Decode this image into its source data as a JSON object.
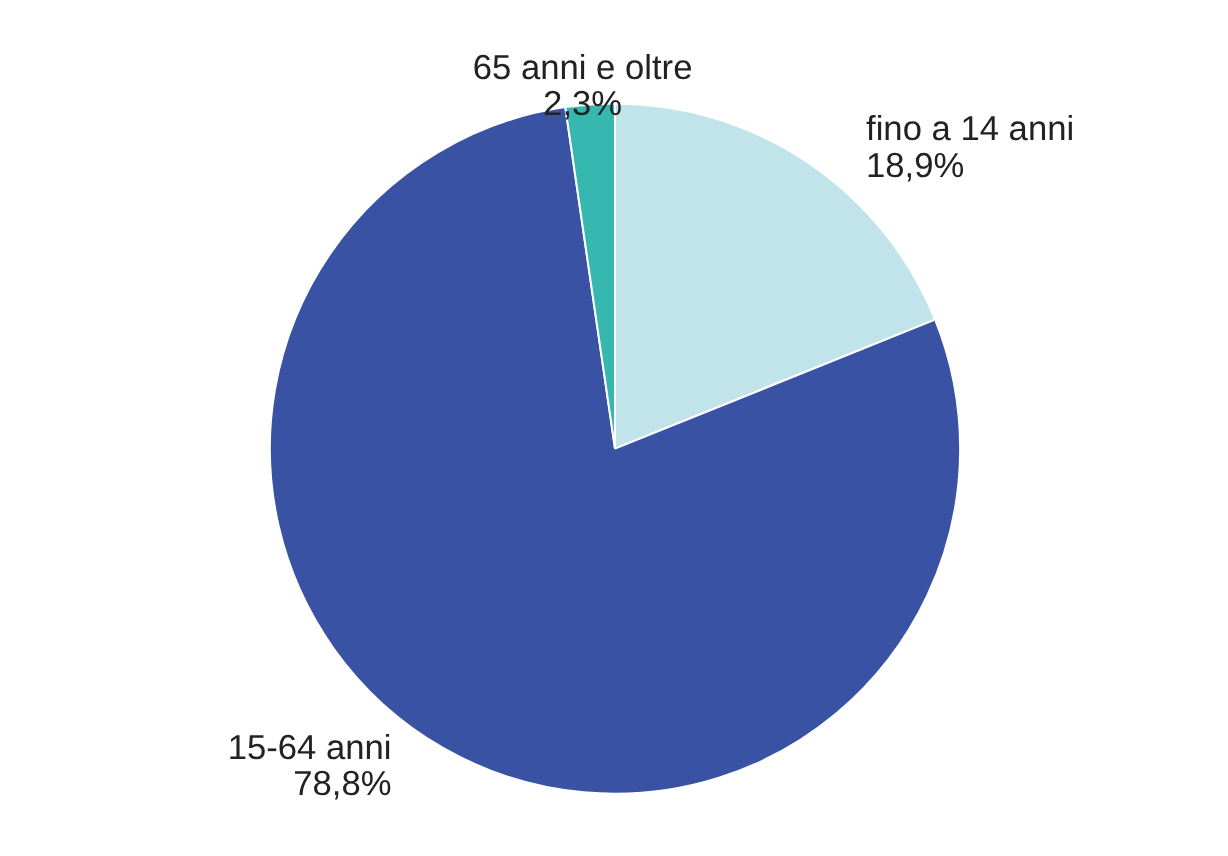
{
  "chart_data": {
    "type": "pie",
    "categories": [
      "fino a 14 anni",
      "15-64 anni",
      "65 anni e oltre"
    ],
    "values": [
      18.9,
      78.8,
      2.3
    ],
    "colors": [
      "#c0e4ea",
      "#3a52a4",
      "#36b8b0"
    ],
    "value_labels": [
      "18,9%",
      "78,8%",
      "2,3%"
    ]
  }
}
